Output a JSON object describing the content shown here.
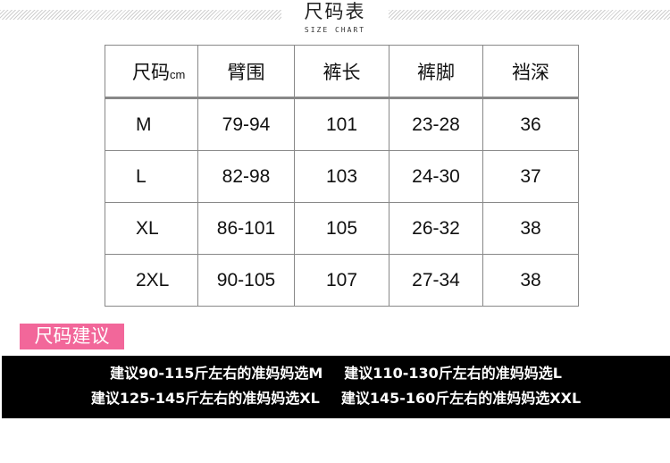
{
  "header": {
    "title": "尺码表",
    "subtitle": "SIZE CHART"
  },
  "table": {
    "headers": [
      "尺码",
      "臂围",
      "裤长",
      "裤脚",
      "裆深"
    ],
    "unit": "cm",
    "rows": [
      [
        "M",
        "79-94",
        "101",
        "23-28",
        "36"
      ],
      [
        "L",
        "82-98",
        "103",
        "24-30",
        "37"
      ],
      [
        "XL",
        "86-101",
        "105",
        "26-32",
        "38"
      ],
      [
        "2XL",
        "90-105",
        "107",
        "27-34",
        "38"
      ]
    ]
  },
  "advice": {
    "label": "尺码建议",
    "lines": [
      "建议90-115斤左右的准妈妈选M",
      "建议110-130斤左右的准妈妈选L",
      "建议125-145斤左右的准妈妈选XL",
      "建议145-160斤左右的准妈妈选XXL"
    ],
    "colors": {
      "badge": "#f2679a",
      "band": "#000000"
    }
  }
}
